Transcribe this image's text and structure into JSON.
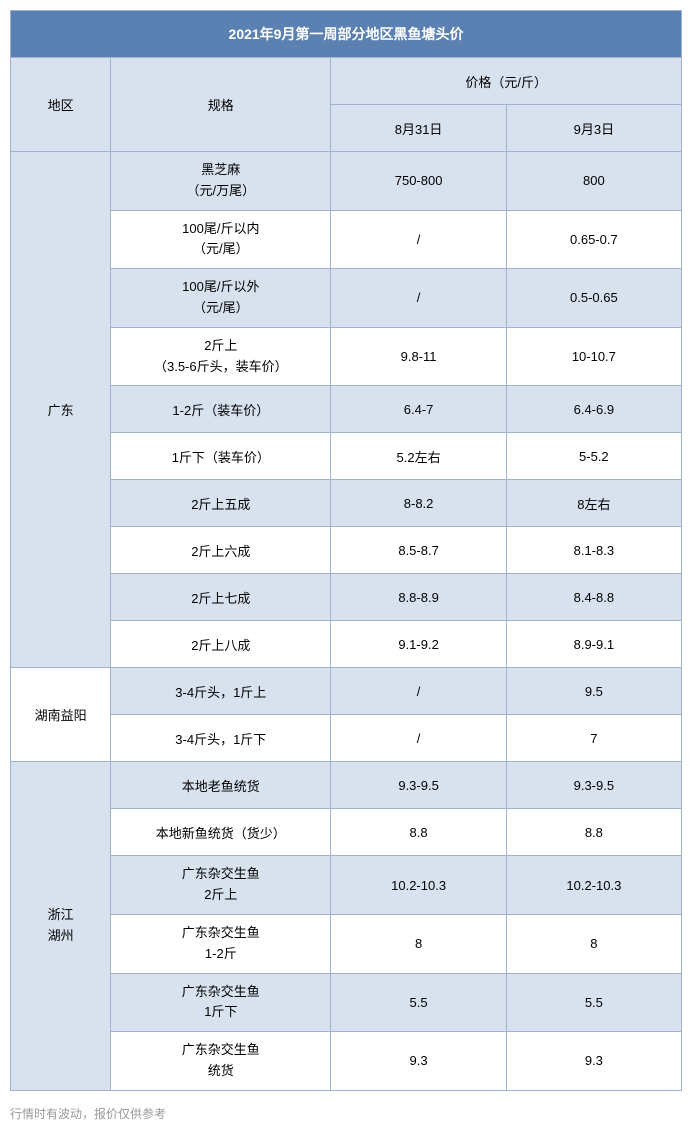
{
  "title": "2021年9月第一周部分地区黑鱼塘头价",
  "headers": {
    "region": "地区",
    "spec": "规格",
    "price": "价格（元/斤）",
    "date1": "8月31日",
    "date2": "9月3日"
  },
  "regions": {
    "r1": {
      "name": "广东"
    },
    "r2": {
      "name": "湖南益阳"
    },
    "r3": {
      "name_l1": "浙江",
      "name_l2": "湖州"
    }
  },
  "rows": {
    "gd1": {
      "spec_l1": "黑芝麻",
      "spec_l2": "（元/万尾）",
      "p1": "750-800",
      "p2": "800"
    },
    "gd2": {
      "spec_l1": "100尾/斤以内",
      "spec_l2": "（元/尾）",
      "p1": "/",
      "p2": "0.65-0.7"
    },
    "gd3": {
      "spec_l1": "100尾/斤以外",
      "spec_l2": "（元/尾）",
      "p1": "/",
      "p2": "0.5-0.65"
    },
    "gd4": {
      "spec_l1": "2斤上",
      "spec_l2": "（3.5-6斤头，装车价）",
      "p1": "9.8-11",
      "p2": "10-10.7"
    },
    "gd5": {
      "spec": "1-2斤（装车价）",
      "p1": "6.4-7",
      "p2": "6.4-6.9"
    },
    "gd6": {
      "spec": "1斤下（装车价）",
      "p1": "5.2左右",
      "p2": "5-5.2"
    },
    "gd7": {
      "spec": "2斤上五成",
      "p1": "8-8.2",
      "p2": "8左右"
    },
    "gd8": {
      "spec": "2斤上六成",
      "p1": "8.5-8.7",
      "p2": "8.1-8.3"
    },
    "gd9": {
      "spec": "2斤上七成",
      "p1": "8.8-8.9",
      "p2": "8.4-8.8"
    },
    "gd10": {
      "spec": "2斤上八成",
      "p1": "9.1-9.2",
      "p2": "8.9-9.1"
    },
    "hn1": {
      "spec": "3-4斤头，1斤上",
      "p1": "/",
      "p2": "9.5"
    },
    "hn2": {
      "spec": "3-4斤头，1斤下",
      "p1": "/",
      "p2": "7"
    },
    "zj1": {
      "spec": "本地老鱼统货",
      "p1": "9.3-9.5",
      "p2": "9.3-9.5"
    },
    "zj2": {
      "spec": "本地新鱼统货（货少）",
      "p1": "8.8",
      "p2": "8.8"
    },
    "zj3": {
      "spec_l1": "广东杂交生鱼",
      "spec_l2": "2斤上",
      "p1": "10.2-10.3",
      "p2": "10.2-10.3"
    },
    "zj4": {
      "spec_l1": "广东杂交生鱼",
      "spec_l2": "1-2斤",
      "p1": "8",
      "p2": "8"
    },
    "zj5": {
      "spec_l1": "广东杂交生鱼",
      "spec_l2": "1斤下",
      "p1": "5.5",
      "p2": "5.5"
    },
    "zj6": {
      "spec_l1": "广东杂交生鱼",
      "spec_l2": "统货",
      "p1": "9.3",
      "p2": "9.3"
    }
  },
  "footer": "行情时有波动，报价仅供参考",
  "colors": {
    "title_bg": "#5b80b2",
    "header_bg": "#d8e1ee",
    "border": "#a0b2cc",
    "footer_text": "#999999"
  }
}
